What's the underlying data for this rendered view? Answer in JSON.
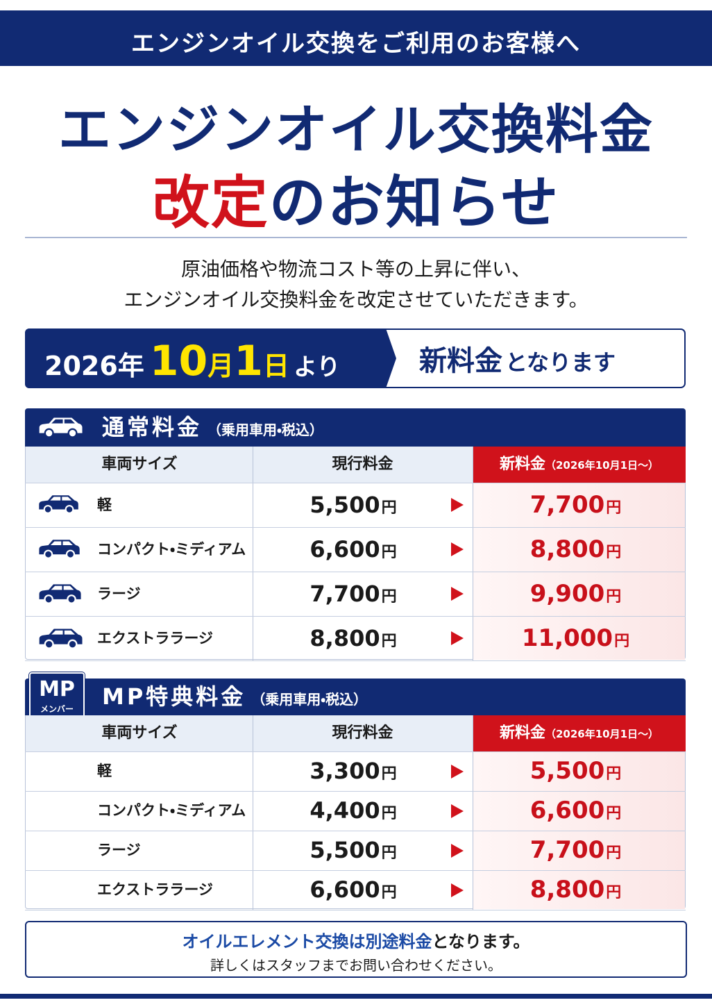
{
  "header": {
    "banner": "エンジンオイル交換をご利用のお客様へ"
  },
  "title": {
    "line1": "エンジンオイル交換料金",
    "line2_highlight": "改定",
    "line2_rest": "のお知らせ"
  },
  "intro": [
    "原油価格や物流コスト等の上昇に伴い、",
    "エンジンオイル交換料金を改定させていただきます。"
  ],
  "effective": {
    "year": "2026年",
    "month_num": "10",
    "month_unit": "月",
    "day_num": "1",
    "day_unit": "日",
    "suffix": "より",
    "new_fee": "新料金",
    "new_fee_rest": "となります"
  },
  "price_unit": "円",
  "sections": [
    {
      "title": "通常料金",
      "note": "（乗用車用・税込）",
      "columns": {
        "size": "車両サイズ",
        "current": "現行料金",
        "new": "新料金",
        "new_note": "（2026年10月1日～）"
      },
      "rows": [
        {
          "size": "軽",
          "current": "5,500",
          "new": "7,700"
        },
        {
          "size": "コンパクト・ミディアム",
          "current": "6,600",
          "new": "8,800"
        },
        {
          "size": "ラージ",
          "current": "7,700",
          "new": "9,900"
        },
        {
          "size": "エクストララージ",
          "current": "8,800",
          "new": "11,000"
        }
      ]
    },
    {
      "badge": "MP",
      "badge_sub": "メンバー",
      "title": "MP特典料金",
      "note": "（乗用車用・税込）",
      "columns": {
        "size": "車両サイズ",
        "current": "現行料金",
        "new": "新料金",
        "new_note": "（2026年10月1日～）"
      },
      "rows": [
        {
          "size": "軽",
          "current": "3,300",
          "new": "5,500"
        },
        {
          "size": "コンパクト・ミディアム",
          "current": "4,400",
          "new": "6,600"
        },
        {
          "size": "ラージ",
          "current": "5,500",
          "new": "7,700"
        },
        {
          "size": "エクストララージ",
          "current": "6,600",
          "new": "8,800"
        }
      ]
    }
  ],
  "footer": {
    "line1_highlight": "オイルエレメント交換は別途料金",
    "line1_rest": "となります。",
    "line2": "詳しくはスタッフまでお問い合わせください。"
  }
}
